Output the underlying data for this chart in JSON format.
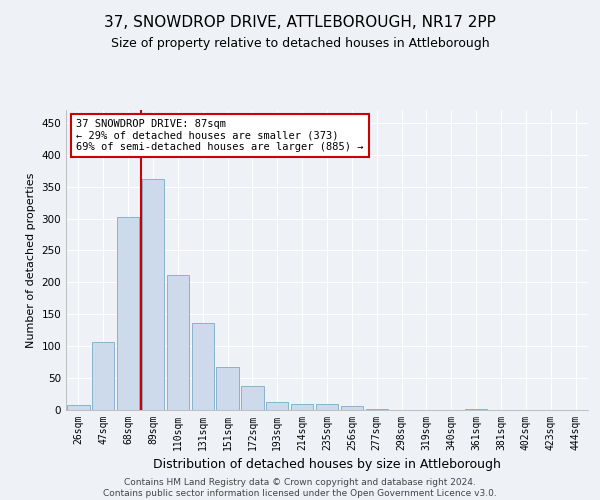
{
  "title": "37, SNOWDROP DRIVE, ATTLEBOROUGH, NR17 2PP",
  "subtitle": "Size of property relative to detached houses in Attleborough",
  "xlabel": "Distribution of detached houses by size in Attleborough",
  "ylabel": "Number of detached properties",
  "bar_color": "#ccdaeb",
  "bar_edge_color": "#7aaac8",
  "categories": [
    "26sqm",
    "47sqm",
    "68sqm",
    "89sqm",
    "110sqm",
    "131sqm",
    "151sqm",
    "172sqm",
    "193sqm",
    "214sqm",
    "235sqm",
    "256sqm",
    "277sqm",
    "298sqm",
    "319sqm",
    "340sqm",
    "361sqm",
    "381sqm",
    "402sqm",
    "423sqm",
    "444sqm"
  ],
  "values": [
    8,
    107,
    302,
    362,
    212,
    137,
    68,
    38,
    13,
    10,
    9,
    6,
    2,
    0,
    0,
    0,
    2,
    0,
    0,
    0,
    0
  ],
  "property_line_x": 2.5,
  "property_line_color": "#cc0000",
  "annotation_line1": "37 SNOWDROP DRIVE: 87sqm",
  "annotation_line2": "← 29% of detached houses are smaller (373)",
  "annotation_line3": "69% of semi-detached houses are larger (885) →",
  "annotation_box_color": "#cc0000",
  "annotation_bg": "#ffffff",
  "ylim": [
    0,
    470
  ],
  "yticks": [
    0,
    50,
    100,
    150,
    200,
    250,
    300,
    350,
    400,
    450
  ],
  "footer_line1": "Contains HM Land Registry data © Crown copyright and database right 2024.",
  "footer_line2": "Contains public sector information licensed under the Open Government Licence v3.0.",
  "background_color": "#eef2f7",
  "grid_color": "#ffffff",
  "title_fontsize": 11,
  "subtitle_fontsize": 9,
  "ylabel_fontsize": 8,
  "xlabel_fontsize": 9,
  "tick_fontsize": 7,
  "footer_fontsize": 6.5,
  "bar_width": 0.9
}
